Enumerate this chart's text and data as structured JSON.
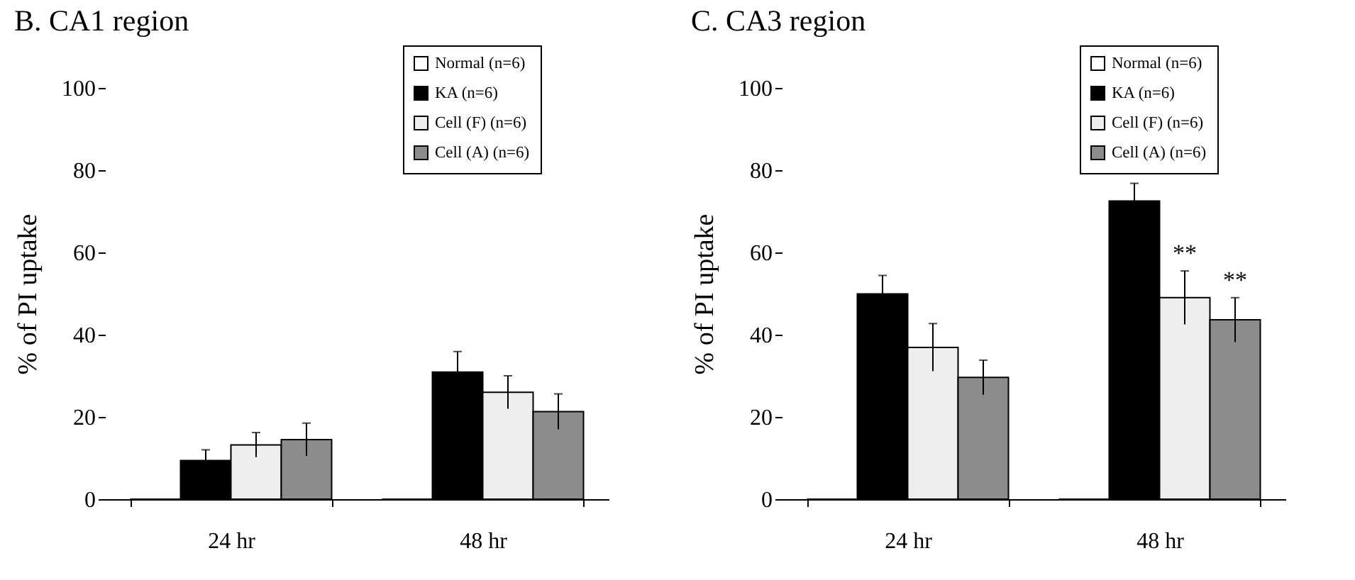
{
  "chart_data": [
    {
      "type": "bar",
      "title": "B. CA1 region",
      "ylabel": "% of PI uptake",
      "categories": [
        "24 hr",
        "48 hr"
      ],
      "ylim": [
        0,
        100
      ],
      "yticks": [
        0,
        20,
        40,
        60,
        80,
        100
      ],
      "legend": "top right",
      "series": [
        {
          "name": "Normal (n=6)",
          "color": "#ffffff",
          "values": [
            0,
            0
          ],
          "errors": [
            null,
            null
          ]
        },
        {
          "name": "KA (n=6)",
          "color": "#000000",
          "values": [
            9.4,
            30.9
          ],
          "errors": [
            2.6,
            5
          ]
        },
        {
          "name": "Cell (F) (n=6)",
          "color": "#eeeeee",
          "values": [
            13.2,
            26
          ],
          "errors": [
            3,
            4
          ]
        },
        {
          "name": "Cell (A) (n=6)",
          "color": "#8c8c8c",
          "values": [
            14.5,
            21.3
          ],
          "errors": [
            4,
            4.3
          ]
        }
      ]
    },
    {
      "type": "bar",
      "title": "C. CA3 region",
      "ylabel": "% of PI uptake",
      "categories": [
        "24 hr",
        "48 hr"
      ],
      "ylim": [
        0,
        100
      ],
      "yticks": [
        0,
        20,
        40,
        60,
        80,
        100
      ],
      "legend": "top right",
      "series": [
        {
          "name": "Normal (n=6)",
          "color": "#ffffff",
          "values": [
            0,
            0
          ],
          "errors": [
            null,
            null
          ]
        },
        {
          "name": "KA (n=6)",
          "color": "#000000",
          "values": [
            49.9,
            72.5
          ],
          "errors": [
            4.5,
            4.3
          ]
        },
        {
          "name": "Cell (F) (n=6)",
          "color": "#eeeeee",
          "values": [
            36.9,
            49
          ],
          "errors": [
            5.8,
            6.5
          ]
        },
        {
          "name": "Cell (A) (n=6)",
          "color": "#8c8c8c",
          "values": [
            29.6,
            43.6
          ],
          "errors": [
            4.2,
            5.4
          ]
        }
      ],
      "annotations": [
        {
          "text": "**",
          "x": "48 hr",
          "y": 55.5
        },
        {
          "text": "**",
          "x": "48 hr",
          "y": 49
        }
      ]
    }
  ]
}
